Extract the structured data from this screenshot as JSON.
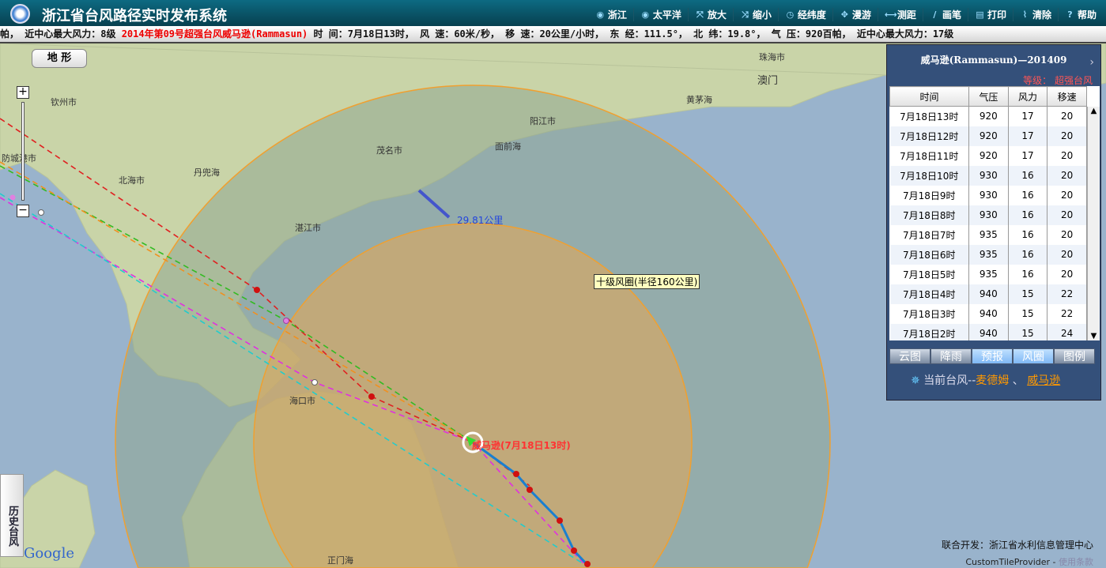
{
  "header": {
    "title": "浙江省台风路径实时发布系统",
    "tools": [
      {
        "label": "浙江",
        "icon": "globe-icon"
      },
      {
        "label": "太平洋",
        "icon": "globe-icon"
      },
      {
        "label": "放大",
        "icon": "zoom-in-icon"
      },
      {
        "label": "缩小",
        "icon": "zoom-out-icon"
      },
      {
        "label": "经纬度",
        "icon": "clock-icon"
      },
      {
        "label": "漫游",
        "icon": "move-icon"
      },
      {
        "label": "测距",
        "icon": "ruler-icon"
      },
      {
        "label": "画笔",
        "icon": "pen-icon"
      },
      {
        "label": "打印",
        "icon": "printer-icon"
      },
      {
        "label": "清除",
        "icon": "broom-icon"
      },
      {
        "label": "帮助",
        "icon": "help-icon"
      }
    ]
  },
  "ticker": {
    "prefix": "帕， 近中心最大风力：8级 ",
    "name": "2014年第09号超强台风威马逊(Rammasun)",
    "info": " 时 间：7月18日13时， 风 速：60米/秒， 移 速：20公里/小时， 东 经：111.5°， 北 纬：19.8°， 气 压：920百帕， 近中心最大风力：17级"
  },
  "map": {
    "terrain_button": "地 形",
    "zoom_in": "+",
    "zoom_out": "−",
    "places": [
      "钦州市",
      "北海市",
      "防城港市",
      "丹兜海",
      "茂名市",
      "阳江市",
      "面前海",
      "湛江市",
      "海口市",
      "珠海市",
      "澳门",
      "黄茅海",
      "正门海"
    ],
    "distance_label": "29.81公里",
    "wind_circle_label": "十级风圈(半径160公里)",
    "typhoon_label": "威马逊(7月18日13时)",
    "history_button": "历史台风",
    "credit": "联合开发：浙江省水利信息管理中心",
    "tiles": "CustomTileProvider - ",
    "terms": "使用条款",
    "google": "Google"
  },
  "panel": {
    "title": "威马逊(Rammasun)—201409",
    "level": "等级： 超强台风",
    "columns": [
      "时间",
      "气压",
      "风力",
      "移速"
    ],
    "rows": [
      [
        "7月18日13时",
        "920",
        "17",
        "20"
      ],
      [
        "7月18日12时",
        "920",
        "17",
        "20"
      ],
      [
        "7月18日11时",
        "920",
        "17",
        "20"
      ],
      [
        "7月18日10时",
        "930",
        "16",
        "20"
      ],
      [
        "7月18日9时",
        "930",
        "16",
        "20"
      ],
      [
        "7月18日8时",
        "930",
        "16",
        "20"
      ],
      [
        "7月18日7时",
        "935",
        "16",
        "20"
      ],
      [
        "7月18日6时",
        "935",
        "16",
        "20"
      ],
      [
        "7月18日5时",
        "935",
        "16",
        "20"
      ],
      [
        "7月18日4时",
        "940",
        "15",
        "22"
      ],
      [
        "7月18日3时",
        "940",
        "15",
        "22"
      ],
      [
        "7月18日2时",
        "940",
        "15",
        "24"
      ]
    ],
    "tabs": [
      "云图",
      "降雨",
      "预报",
      "风圈",
      "图例"
    ],
    "active_tabs": [
      "预报",
      "风圈"
    ],
    "current_label": "当前台风--",
    "current": [
      "麦德姆",
      "威马逊"
    ],
    "sep": "、"
  },
  "colors": {
    "header": "#0d6a82",
    "panel": "#34507a",
    "outer_circle": "#8fa590",
    "inner_circle": "#d9a860",
    "track": "#1a7fd0"
  }
}
